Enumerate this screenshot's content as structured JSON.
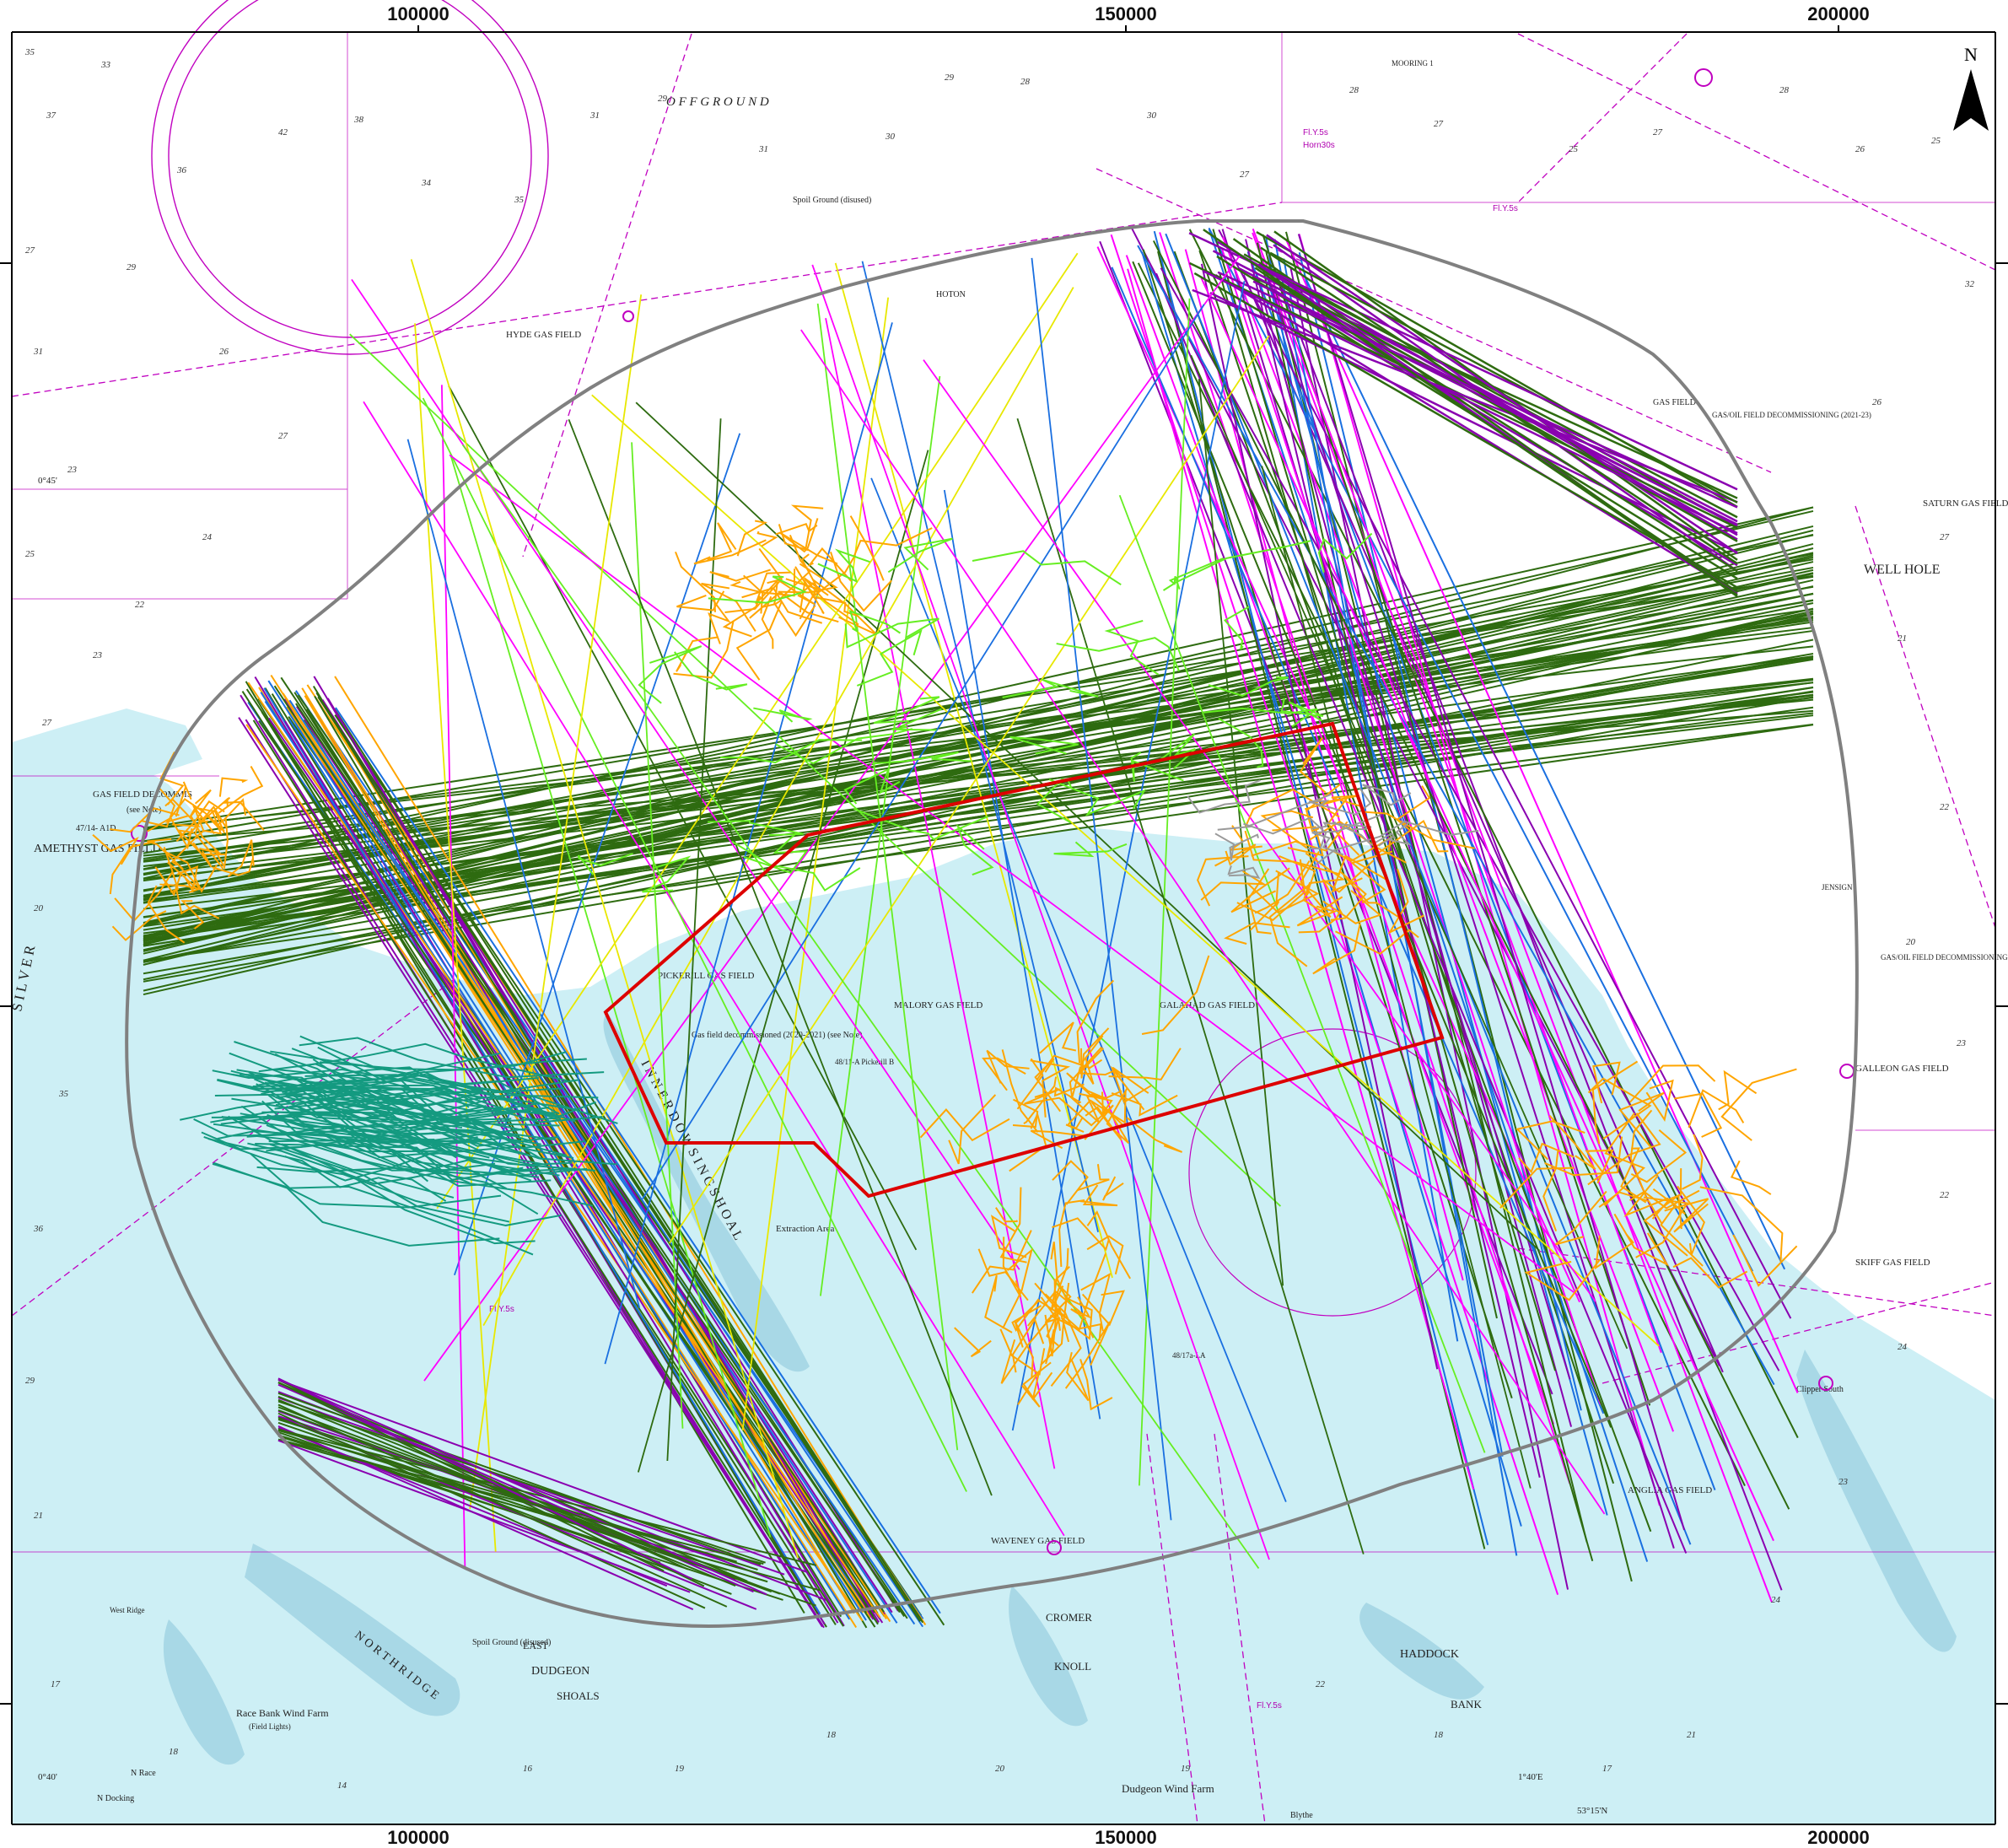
{
  "frame": {
    "top_ticks": [
      "100000",
      "150000",
      "200000"
    ],
    "bottom_ticks": [
      "100000",
      "150000",
      "200000"
    ]
  },
  "north_arrow": {
    "label": "N",
    "icon": "north-arrow-icon"
  },
  "colors": {
    "sea_shallow": "#cdeff5",
    "sea_deep": "#ffffff",
    "sand_bank": "#a8d8e6",
    "boundary": "#808080",
    "red_polygon": "#dd0000",
    "chart_magenta": "#c000c0",
    "track_dark_green": "#2e6b10",
    "track_light_green": "#66ee22",
    "track_blue": "#1a6fe0",
    "track_purple": "#8a00b0",
    "track_orange": "#ffa500",
    "track_teal": "#149a80",
    "track_magenta": "#ff00ff",
    "track_yellow": "#e8e800",
    "track_gray": "#9a9a9a"
  },
  "labels": {
    "off_ground": "O F F   G R O U N D",
    "hyde": "HYDE GAS FIELD",
    "hoton": "HOTON",
    "amethyst": "AMETHYST GAS FIELD",
    "gas_decom": "GAS FIELD DECOMMIS",
    "see_note": "(see Note)",
    "a47_14": "47/14- A1D",
    "cleeton": "GAS FIELD",
    "well_hole": "WELL HOLE",
    "saturn": "SATURN GAS FIELD",
    "galleon": "GALLEON GAS FIELD",
    "skiff": "SKIFF GAS FIELD",
    "clipper_south": "Clipper South",
    "anglia": "ANGLIA GAS FIELD",
    "galahad": "GALAHAD GAS FIELD",
    "malory": "MALORY GAS FIELD",
    "pickerill": "PICKERILL GAS FIELD",
    "waveney": "WAVENEY GAS FIELD",
    "gas_field_decom_2020": "Gas field decommissioned (2020-2021) (see Note)",
    "a48_11": "48/11-A Pickerill B",
    "a48_17": "48/17a-LA",
    "race_bank": "Race Bank Wind Farm",
    "field_lights": "(Field Lights)",
    "dudgeon_wf": "Dudgeon Wind Farm",
    "dudgeon": "DUDGEON",
    "shoals": "SHOALS",
    "east": "EAST",
    "north_ridge": "N O R T H   R I D G E",
    "haddock": "HADDOCK",
    "bank": "BANK",
    "cromer": "CROMER",
    "knoll": "KNOLL",
    "inner_dowsing": "I N N E R   D O W S I N G   S H O A L",
    "extraction": "Extraction Area",
    "spoil_ground": "Spoil Ground (disused)",
    "spoil_ground2": "Spoil Ground (disused)",
    "silver_pit": "S I L V E R",
    "west_ridge": "West Ridge",
    "n_docking": "N Docking",
    "n_race": "N Race",
    "blythe": "Blythe",
    "lat_0_40": "0°40'",
    "lat_0_45": "0°45'",
    "lat_1_40": "1°40'E",
    "lat_53": "53°15'N",
    "mooring": "MOORING 1",
    "gas_oil_decom": "GAS/OIL FIELD DECOMMISSIONING (2021-23)",
    "jensign": "JENSIGN",
    "gas_oil_decom2": "GAS/OIL FIELD DECOMMISSIONING",
    "fly5s": "Fl.Y.5s",
    "horn30s": "Horn30s",
    "depth_label_sample": "25"
  }
}
